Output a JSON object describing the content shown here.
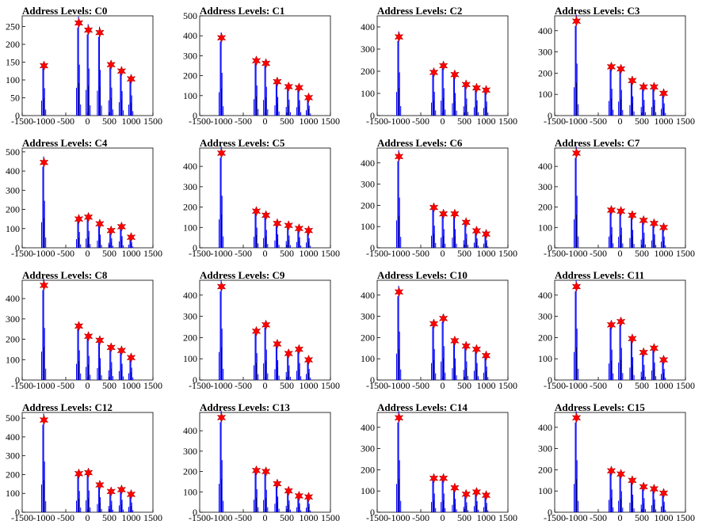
{
  "chart_data": [
    {
      "type": "bar",
      "title": "Address Levels: C0",
      "xlim": [
        -1500,
        1500
      ],
      "ylim": [
        0,
        280
      ],
      "yticks": [
        0,
        50,
        100,
        150,
        200,
        250
      ],
      "xticks": [
        -1500,
        -1000,
        -500,
        0,
        500,
        1000,
        1500
      ],
      "peaks": [
        {
          "x": -1000,
          "y": 140
        },
        {
          "x": -200,
          "y": 260
        },
        {
          "x": 20,
          "y": 240
        },
        {
          "x": 280,
          "y": 233
        },
        {
          "x": 540,
          "y": 143
        },
        {
          "x": 780,
          "y": 125
        },
        {
          "x": 1000,
          "y": 103
        }
      ]
    },
    {
      "type": "bar",
      "title": "Address Levels: C1",
      "xlim": [
        -1500,
        1500
      ],
      "ylim": [
        0,
        500
      ],
      "yticks": [
        0,
        100,
        200,
        300,
        400,
        500
      ],
      "xticks": [
        -1500,
        -1000,
        -500,
        0,
        500,
        1000,
        1500
      ],
      "peaks": [
        {
          "x": -1000,
          "y": 390
        },
        {
          "x": -200,
          "y": 275
        },
        {
          "x": 20,
          "y": 262
        },
        {
          "x": 280,
          "y": 170
        },
        {
          "x": 540,
          "y": 145
        },
        {
          "x": 780,
          "y": 140
        },
        {
          "x": 1000,
          "y": 90
        }
      ]
    },
    {
      "type": "bar",
      "title": "Address Levels: C2",
      "xlim": [
        -1500,
        1500
      ],
      "ylim": [
        0,
        450
      ],
      "yticks": [
        0,
        100,
        200,
        300,
        400
      ],
      "xticks": [
        -1500,
        -1000,
        -500,
        0,
        500,
        1000,
        1500
      ],
      "peaks": [
        {
          "x": -1000,
          "y": 355
        },
        {
          "x": -200,
          "y": 195
        },
        {
          "x": 20,
          "y": 225
        },
        {
          "x": 280,
          "y": 185
        },
        {
          "x": 540,
          "y": 140
        },
        {
          "x": 780,
          "y": 125
        },
        {
          "x": 1000,
          "y": 115
        }
      ]
    },
    {
      "type": "bar",
      "title": "Address Levels: C3",
      "xlim": [
        -1500,
        1500
      ],
      "ylim": [
        0,
        470
      ],
      "yticks": [
        0,
        100,
        200,
        300,
        400
      ],
      "xticks": [
        -1500,
        -1000,
        -500,
        0,
        500,
        1000,
        1500
      ],
      "peaks": [
        {
          "x": -1000,
          "y": 445
        },
        {
          "x": -200,
          "y": 230
        },
        {
          "x": 20,
          "y": 220
        },
        {
          "x": 280,
          "y": 165
        },
        {
          "x": 540,
          "y": 135
        },
        {
          "x": 780,
          "y": 135
        },
        {
          "x": 1000,
          "y": 105
        }
      ]
    },
    {
      "type": "bar",
      "title": "Address Levels: C4",
      "xlim": [
        -1500,
        1500
      ],
      "ylim": [
        0,
        520
      ],
      "yticks": [
        0,
        100,
        200,
        300,
        400,
        500
      ],
      "xticks": [
        -1500,
        -1000,
        -500,
        0,
        500,
        1000,
        1500
      ],
      "peaks": [
        {
          "x": -1000,
          "y": 445
        },
        {
          "x": -200,
          "y": 150
        },
        {
          "x": 20,
          "y": 160
        },
        {
          "x": 280,
          "y": 125
        },
        {
          "x": 540,
          "y": 90
        },
        {
          "x": 780,
          "y": 110
        },
        {
          "x": 1000,
          "y": 55
        }
      ]
    },
    {
      "type": "bar",
      "title": "Address Levels: C5",
      "xlim": [
        -1500,
        1500
      ],
      "ylim": [
        0,
        490
      ],
      "yticks": [
        0,
        100,
        200,
        300,
        400
      ],
      "xticks": [
        -1500,
        -1000,
        -500,
        0,
        500,
        1000,
        1500
      ],
      "peaks": [
        {
          "x": -1000,
          "y": 465
        },
        {
          "x": -200,
          "y": 180
        },
        {
          "x": 20,
          "y": 160
        },
        {
          "x": 280,
          "y": 120
        },
        {
          "x": 540,
          "y": 110
        },
        {
          "x": 780,
          "y": 95
        },
        {
          "x": 1000,
          "y": 85
        }
      ]
    },
    {
      "type": "bar",
      "title": "Address Levels: C6",
      "xlim": [
        -1500,
        1500
      ],
      "ylim": [
        0,
        470
      ],
      "yticks": [
        0,
        100,
        200,
        300,
        400
      ],
      "xticks": [
        -1500,
        -1000,
        -500,
        0,
        500,
        1000,
        1500
      ],
      "peaks": [
        {
          "x": -1000,
          "y": 430
        },
        {
          "x": -200,
          "y": 190
        },
        {
          "x": 20,
          "y": 160
        },
        {
          "x": 280,
          "y": 160
        },
        {
          "x": 540,
          "y": 120
        },
        {
          "x": 780,
          "y": 80
        },
        {
          "x": 1000,
          "y": 65
        }
      ]
    },
    {
      "type": "bar",
      "title": "Address Levels: C7",
      "xlim": [
        -1500,
        1500
      ],
      "ylim": [
        0,
        490
      ],
      "yticks": [
        0,
        100,
        200,
        300,
        400
      ],
      "xticks": [
        -1500,
        -1000,
        -500,
        0,
        500,
        1000,
        1500
      ],
      "peaks": [
        {
          "x": -1000,
          "y": 465
        },
        {
          "x": -200,
          "y": 185
        },
        {
          "x": 20,
          "y": 180
        },
        {
          "x": 280,
          "y": 160
        },
        {
          "x": 540,
          "y": 135
        },
        {
          "x": 780,
          "y": 120
        },
        {
          "x": 1000,
          "y": 100
        }
      ]
    },
    {
      "type": "bar",
      "title": "Address Levels: C8",
      "xlim": [
        -1500,
        1500
      ],
      "ylim": [
        0,
        490
      ],
      "yticks": [
        0,
        100,
        200,
        300,
        400
      ],
      "xticks": [
        -1500,
        -1000,
        -500,
        0,
        500,
        1000,
        1500
      ],
      "peaks": [
        {
          "x": -1000,
          "y": 465
        },
        {
          "x": -200,
          "y": 265
        },
        {
          "x": 20,
          "y": 215
        },
        {
          "x": 280,
          "y": 195
        },
        {
          "x": 540,
          "y": 160
        },
        {
          "x": 780,
          "y": 145
        },
        {
          "x": 1000,
          "y": 110
        }
      ]
    },
    {
      "type": "bar",
      "title": "Address Levels: C9",
      "xlim": [
        -1500,
        1500
      ],
      "ylim": [
        0,
        470
      ],
      "yticks": [
        0,
        100,
        200,
        300,
        400
      ],
      "xticks": [
        -1500,
        -1000,
        -500,
        0,
        500,
        1000,
        1500
      ],
      "peaks": [
        {
          "x": -1000,
          "y": 440
        },
        {
          "x": -200,
          "y": 230
        },
        {
          "x": 20,
          "y": 260
        },
        {
          "x": 280,
          "y": 170
        },
        {
          "x": 540,
          "y": 125
        },
        {
          "x": 780,
          "y": 145
        },
        {
          "x": 1000,
          "y": 95
        }
      ]
    },
    {
      "type": "bar",
      "title": "Address Levels: C10",
      "xlim": [
        -1500,
        1500
      ],
      "ylim": [
        0,
        470
      ],
      "yticks": [
        0,
        100,
        200,
        300,
        400
      ],
      "xticks": [
        -1500,
        -1000,
        -500,
        0,
        500,
        1000,
        1500
      ],
      "peaks": [
        {
          "x": -1000,
          "y": 415
        },
        {
          "x": -200,
          "y": 265
        },
        {
          "x": 20,
          "y": 290
        },
        {
          "x": 280,
          "y": 185
        },
        {
          "x": 540,
          "y": 160
        },
        {
          "x": 780,
          "y": 145
        },
        {
          "x": 1000,
          "y": 115
        }
      ]
    },
    {
      "type": "bar",
      "title": "Address Levels: C11",
      "xlim": [
        -1500,
        1500
      ],
      "ylim": [
        0,
        470
      ],
      "yticks": [
        0,
        100,
        200,
        300,
        400
      ],
      "xticks": [
        -1500,
        -1000,
        -500,
        0,
        500,
        1000,
        1500
      ],
      "peaks": [
        {
          "x": -1000,
          "y": 440
        },
        {
          "x": -200,
          "y": 260
        },
        {
          "x": 20,
          "y": 275
        },
        {
          "x": 280,
          "y": 195
        },
        {
          "x": 540,
          "y": 130
        },
        {
          "x": 780,
          "y": 150
        },
        {
          "x": 1000,
          "y": 95
        }
      ]
    },
    {
      "type": "bar",
      "title": "Address Levels: C12",
      "xlim": [
        -1500,
        1500
      ],
      "ylim": [
        0,
        530
      ],
      "yticks": [
        0,
        100,
        200,
        300,
        400,
        500
      ],
      "xticks": [
        -1500,
        -1000,
        -500,
        0,
        500,
        1000,
        1500
      ],
      "peaks": [
        {
          "x": -1000,
          "y": 490
        },
        {
          "x": -200,
          "y": 205
        },
        {
          "x": 20,
          "y": 210
        },
        {
          "x": 280,
          "y": 145
        },
        {
          "x": 540,
          "y": 110
        },
        {
          "x": 780,
          "y": 120
        },
        {
          "x": 1000,
          "y": 95
        }
      ]
    },
    {
      "type": "bar",
      "title": "Address Levels: C13",
      "xlim": [
        -1500,
        1500
      ],
      "ylim": [
        0,
        490
      ],
      "yticks": [
        0,
        100,
        200,
        300,
        400
      ],
      "xticks": [
        -1500,
        -1000,
        -500,
        0,
        500,
        1000,
        1500
      ],
      "peaks": [
        {
          "x": -1000,
          "y": 465
        },
        {
          "x": -200,
          "y": 205
        },
        {
          "x": 20,
          "y": 200
        },
        {
          "x": 280,
          "y": 140
        },
        {
          "x": 540,
          "y": 105
        },
        {
          "x": 780,
          "y": 80
        },
        {
          "x": 1000,
          "y": 75
        }
      ]
    },
    {
      "type": "bar",
      "title": "Address Levels: C14",
      "xlim": [
        -1500,
        1500
      ],
      "ylim": [
        0,
        470
      ],
      "yticks": [
        0,
        100,
        200,
        300,
        400
      ],
      "xticks": [
        -1500,
        -1000,
        -500,
        0,
        500,
        1000,
        1500
      ],
      "peaks": [
        {
          "x": -1000,
          "y": 445
        },
        {
          "x": -200,
          "y": 160
        },
        {
          "x": 20,
          "y": 160
        },
        {
          "x": 280,
          "y": 115
        },
        {
          "x": 540,
          "y": 85
        },
        {
          "x": 780,
          "y": 95
        },
        {
          "x": 1000,
          "y": 80
        }
      ]
    },
    {
      "type": "bar",
      "title": "Address Levels: C15",
      "xlim": [
        -1500,
        1500
      ],
      "ylim": [
        0,
        470
      ],
      "yticks": [
        0,
        100,
        200,
        300,
        400
      ],
      "xticks": [
        -1500,
        -1000,
        -500,
        0,
        500,
        1000,
        1500
      ],
      "peaks": [
        {
          "x": -1000,
          "y": 445
        },
        {
          "x": -200,
          "y": 195
        },
        {
          "x": 20,
          "y": 180
        },
        {
          "x": 280,
          "y": 150
        },
        {
          "x": 540,
          "y": 120
        },
        {
          "x": 780,
          "y": 110
        },
        {
          "x": 1000,
          "y": 90
        }
      ]
    }
  ],
  "colors": {
    "bar": "#0000ff",
    "marker": "#ff0000",
    "axis": "#000000"
  }
}
